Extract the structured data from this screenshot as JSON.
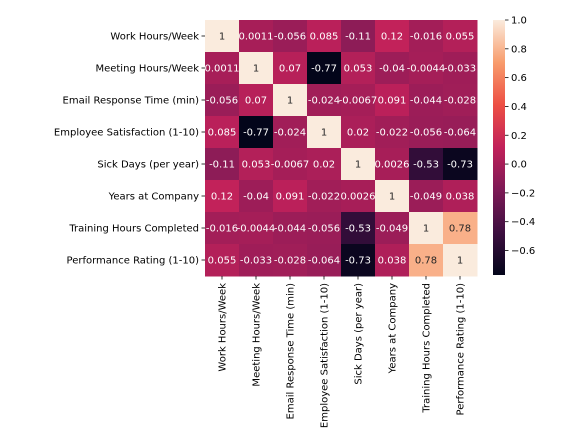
{
  "chart_data": {
    "type": "heatmap",
    "title": "",
    "xlabel": "",
    "ylabel": "",
    "labels": [
      "Work Hours/Week",
      "Meeting Hours/Week",
      "Email Response Time (min)",
      "Employee Satisfaction (1-10)",
      "Sick Days (per year)",
      "Years at Company",
      "Training Hours Completed",
      "Performance Rating (1-10)"
    ],
    "values": [
      [
        1,
        0.0011,
        -0.056,
        0.085,
        -0.11,
        0.12,
        -0.016,
        0.055
      ],
      [
        0.0011,
        1,
        0.07,
        -0.77,
        0.053,
        -0.04,
        -0.0044,
        -0.033
      ],
      [
        -0.056,
        0.07,
        1,
        -0.024,
        -0.0067,
        0.091,
        -0.044,
        -0.028
      ],
      [
        0.085,
        -0.77,
        -0.024,
        1,
        0.02,
        -0.022,
        -0.056,
        -0.064
      ],
      [
        -0.11,
        0.053,
        -0.0067,
        0.02,
        1,
        0.0026,
        -0.53,
        -0.73
      ],
      [
        0.12,
        -0.04,
        0.091,
        -0.022,
        0.0026,
        1,
        -0.049,
        0.038
      ],
      [
        -0.016,
        -0.0044,
        -0.044,
        -0.056,
        -0.53,
        -0.049,
        1,
        0.78
      ],
      [
        0.055,
        -0.033,
        -0.028,
        -0.064,
        -0.73,
        0.038,
        0.78,
        1
      ]
    ],
    "annotations": [
      [
        "1",
        "0.0011",
        "-0.056",
        "0.085",
        "-0.11",
        "0.12",
        "-0.016",
        "0.055"
      ],
      [
        "0.0011",
        "1",
        "0.07",
        "-0.77",
        "0.053",
        "-0.04",
        "-0.0044",
        "-0.033"
      ],
      [
        "-0.056",
        "0.07",
        "1",
        "-0.024",
        "-0.0067",
        "0.091",
        "-0.044",
        "-0.028"
      ],
      [
        "0.085",
        "-0.77",
        "-0.024",
        "1",
        "0.02",
        "-0.022",
        "-0.056",
        "-0.064"
      ],
      [
        "-0.11",
        "0.053",
        "-0.0067",
        "0.02",
        "1",
        "0.0026",
        "-0.53",
        "-0.73"
      ],
      [
        "0.12",
        "-0.04",
        "0.091",
        "-0.022",
        "0.0026",
        "1",
        "-0.049",
        "0.038"
      ],
      [
        "-0.016",
        "-0.0044",
        "-0.044",
        "-0.056",
        "-0.53",
        "-0.049",
        "1",
        "0.78"
      ],
      [
        "0.055",
        "-0.033",
        "-0.028",
        "-0.064",
        "-0.73",
        "0.038",
        "0.78",
        "1"
      ]
    ],
    "colorbar": {
      "vmin": -0.77,
      "vmax": 1.0,
      "ticks": [
        1.0,
        0.8,
        0.6,
        0.4,
        0.2,
        0.0,
        -0.2,
        -0.4,
        -0.6
      ],
      "tick_labels": [
        "1.0",
        "0.8",
        "0.6",
        "0.4",
        "0.2",
        "0.0",
        "−0.2",
        "−0.4",
        "−0.6"
      ],
      "colormap": "rocket",
      "colormap_stops": [
        "#03051a",
        "#3d0f40",
        "#7d1a56",
        "#c1215a",
        "#ed4f44",
        "#f89c6c",
        "#faebdd"
      ]
    },
    "grid": false,
    "legend": "colorbar-right"
  }
}
